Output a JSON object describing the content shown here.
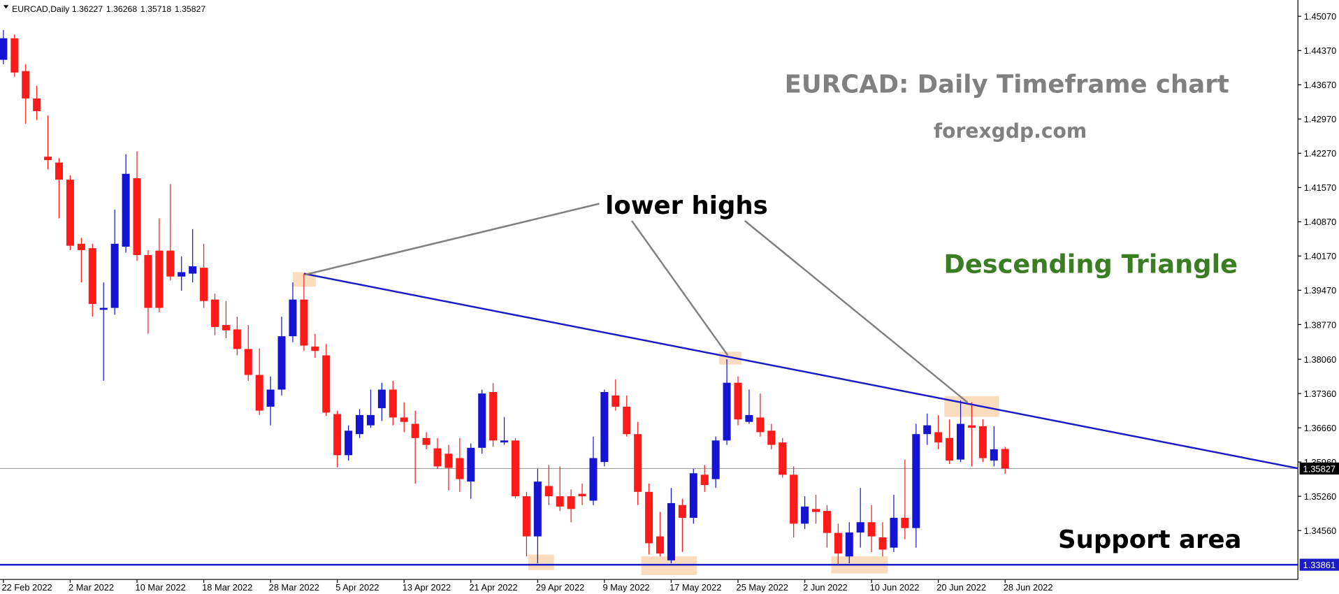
{
  "chart_data": {
    "type": "candlestick",
    "symbol": "EURCAD,Daily",
    "title": "EURCAD: Daily Timeframe chart",
    "subtitle": "forexgdp.com",
    "annotations": [
      "lower highs",
      "Descending Triangle",
      "Support area"
    ],
    "categories": [
      "22 Feb 2022",
      null,
      null,
      null,
      null,
      null,
      "2 Mar 2022",
      null,
      null,
      null,
      null,
      null,
      "10 Mar 2022",
      null,
      null,
      null,
      null,
      null,
      "18 Mar 2022",
      null,
      null,
      null,
      null,
      null,
      "28 Mar 2022",
      null,
      null,
      null,
      null,
      null,
      "5 Apr 2022",
      null,
      null,
      null,
      null,
      null,
      "13 Apr 2022",
      null,
      null,
      null,
      null,
      null,
      "21 Apr 2022",
      null,
      null,
      null,
      null,
      null,
      "29 Apr 2022",
      null,
      null,
      null,
      null,
      null,
      "9 May 2022",
      null,
      null,
      null,
      null,
      null,
      "17 May 2022",
      null,
      null,
      null,
      null,
      null,
      "25 May 2022",
      null,
      null,
      null,
      null,
      null,
      "2 Jun 2022",
      null,
      null,
      null,
      null,
      null,
      "10 Jun 2022",
      null,
      null,
      null,
      null,
      null,
      "20 Jun 2022",
      null,
      null,
      null,
      null,
      null,
      "28 Jun 2022"
    ],
    "open": [
      1.4418,
      1.4462,
      1.4395,
      1.4339,
      1.422,
      1.4208,
      1.4173,
      1.4042,
      1.4033,
      1.3907,
      1.3911,
      1.4036,
      1.4176,
      1.4019,
      1.4028,
      1.4028,
      1.3975,
      1.3981,
      1.3993,
      1.3928,
      1.3876,
      1.3867,
      1.3827,
      1.3774,
      1.3709,
      1.3744,
      1.3853,
      1.3928,
      1.3832,
      1.3814,
      1.3694,
      1.361,
      1.3653,
      1.3671,
      1.3706,
      1.3744,
      1.3687,
      1.3674,
      1.3645,
      1.3624,
      1.3613,
      1.3604,
      1.3556,
      1.3625,
      1.3739,
      1.3636,
      1.364,
      1.3526,
      1.3444,
      1.3547,
      1.3526,
      1.3526,
      1.3531,
      1.3517,
      1.3596,
      1.3732,
      1.3709,
      1.3653,
      1.3535,
      1.3444,
      1.3395,
      1.3508,
      1.3482,
      1.357,
      1.3561,
      1.364,
      1.3758,
      1.3678,
      1.3687,
      1.366,
      1.3636,
      1.357,
      1.347,
      1.35,
      1.3496,
      1.3451,
      1.3403,
      1.3452,
      1.3473,
      1.3442,
      1.3421,
      1.3482,
      1.3461,
      1.3653,
      1.3657,
      1.3645,
      1.3601,
      1.3671,
      1.3669,
      1.3599,
      1.36227
    ],
    "high": [
      1.4479,
      1.447,
      1.4409,
      1.4365,
      1.4304,
      1.4217,
      1.4182,
      1.4054,
      1.4042,
      1.3963,
      1.4112,
      1.4225,
      1.4231,
      1.4029,
      1.4094,
      1.4164,
      1.4016,
      1.4072,
      1.4042,
      1.394,
      1.3925,
      1.3893,
      1.3876,
      1.3828,
      1.3771,
      1.3893,
      1.3963,
      1.3981,
      1.3858,
      1.3837,
      1.3701,
      1.3671,
      1.3704,
      1.3744,
      1.3758,
      1.3762,
      1.3718,
      1.3701,
      1.3657,
      1.3645,
      1.3631,
      1.3645,
      1.3634,
      1.3744,
      1.3757,
      1.3688,
      1.3645,
      1.3535,
      1.3582,
      1.359,
      1.3587,
      1.354,
      1.3552,
      1.3648,
      1.3744,
      1.3765,
      1.3732,
      1.3678,
      1.3552,
      1.3494,
      1.3543,
      1.3521,
      1.3582,
      1.359,
      1.3648,
      1.3806,
      1.3771,
      1.3744,
      1.3736,
      1.3674,
      1.3645,
      1.3587,
      1.3526,
      1.3529,
      1.3508,
      1.347,
      1.3473,
      1.3543,
      1.3508,
      1.3473,
      1.3529,
      1.3601,
      1.3674,
      1.3695,
      1.3692,
      1.3683,
      1.3722,
      1.3718,
      1.3683,
      1.3669,
      1.36268
    ],
    "low": [
      1.4409,
      1.4383,
      1.4287,
      1.4295,
      1.4194,
      1.4094,
      1.4029,
      1.3963,
      1.3893,
      1.3762,
      1.3897,
      1.4024,
      1.4007,
      1.3858,
      1.3902,
      1.3967,
      1.3946,
      1.3963,
      1.3911,
      1.3855,
      1.3849,
      1.3814,
      1.3762,
      1.3692,
      1.3671,
      1.3732,
      1.3841,
      1.3823,
      1.3809,
      1.369,
      1.3585,
      1.3599,
      1.3645,
      1.3666,
      1.368,
      1.3671,
      1.3657,
      1.3552,
      1.3622,
      1.3582,
      1.3538,
      1.3535,
      1.3521,
      1.3613,
      1.3627,
      1.3631,
      1.3522,
      1.3403,
      1.3389,
      1.3508,
      1.3496,
      1.3473,
      1.3508,
      1.3508,
      1.3587,
      1.3701,
      1.3648,
      1.3508,
      1.3407,
      1.3403,
      1.3389,
      1.3412,
      1.347,
      1.3535,
      1.3543,
      1.3631,
      1.3671,
      1.3674,
      1.3648,
      1.3622,
      1.3564,
      1.3442,
      1.3459,
      1.347,
      1.3421,
      1.3386,
      1.3389,
      1.3421,
      1.3412,
      1.3403,
      1.3412,
      1.3438,
      1.3421,
      1.3631,
      1.3622,
      1.3592,
      1.3596,
      1.3587,
      1.3596,
      1.3587,
      1.35718
    ],
    "close": [
      1.4462,
      1.4392,
      1.4339,
      1.4313,
      1.4213,
      1.4173,
      1.4038,
      1.4029,
      1.3919,
      1.3911,
      1.4042,
      1.4185,
      1.4019,
      1.3911,
      1.3911,
      1.3975,
      1.3984,
      1.3996,
      1.3925,
      1.3872,
      1.3865,
      1.3827,
      1.3774,
      1.3701,
      1.3744,
      1.3853,
      1.3928,
      1.3834,
      1.3823,
      1.3697,
      1.361,
      1.366,
      1.3692,
      1.3692,
      1.3744,
      1.3687,
      1.3678,
      1.3645,
      1.3631,
      1.3587,
      1.3584,
      1.3561,
      1.3625,
      1.3736,
      1.364,
      1.364,
      1.3526,
      1.3444,
      1.3556,
      1.3526,
      1.3505,
      1.35,
      1.3526,
      1.3604,
      1.3739,
      1.3709,
      1.3653,
      1.3535,
      1.343,
      1.3409,
      1.3512,
      1.3482,
      1.3573,
      1.3549,
      1.364,
      1.3758,
      1.3683,
      1.3692,
      1.3657,
      1.3631,
      1.357,
      1.347,
      1.3505,
      1.3494,
      1.3451,
      1.3409,
      1.3452,
      1.3473,
      1.3444,
      1.3417,
      1.3482,
      1.3461,
      1.3653,
      1.3671,
      1.3636,
      1.3599,
      1.3674,
      1.3666,
      1.3604,
      1.3622,
      1.35827
    ],
    "up_color": "#1414d2",
    "down_color": "#ff1a1a",
    "ylim": [
      1.3356,
      1.45402
    ],
    "yticks": [
      {
        "value": 1.4507,
        "label": "1.45070"
      },
      {
        "value": 1.4437,
        "label": "1.44370"
      },
      {
        "value": 1.4367,
        "label": "1.43670"
      },
      {
        "value": 1.4297,
        "label": "1.42970"
      },
      {
        "value": 1.4227,
        "label": "1.42270"
      },
      {
        "value": 1.4157,
        "label": "1.41570"
      },
      {
        "value": 1.4087,
        "label": "1.40870"
      },
      {
        "value": 1.4017,
        "label": "1.40170"
      },
      {
        "value": 1.3947,
        "label": "1.39470"
      },
      {
        "value": 1.3877,
        "label": "1.38770"
      },
      {
        "value": 1.3806,
        "label": "1.38060"
      },
      {
        "value": 1.3736,
        "label": "1.37360"
      },
      {
        "value": 1.3666,
        "label": "1.36660"
      },
      {
        "value": 1.3596,
        "label": "1.35960"
      },
      {
        "value": 1.3526,
        "label": "1.35260"
      },
      {
        "value": 1.3456,
        "label": "1.34560"
      }
    ],
    "trendline": {
      "x": [
        27,
        116.3
      ],
      "y": [
        1.3981,
        1.3583
      ],
      "color": "#1a1ac8"
    },
    "support": {
      "value": 1.33861,
      "color": "#1a1ac8"
    }
  }
}
